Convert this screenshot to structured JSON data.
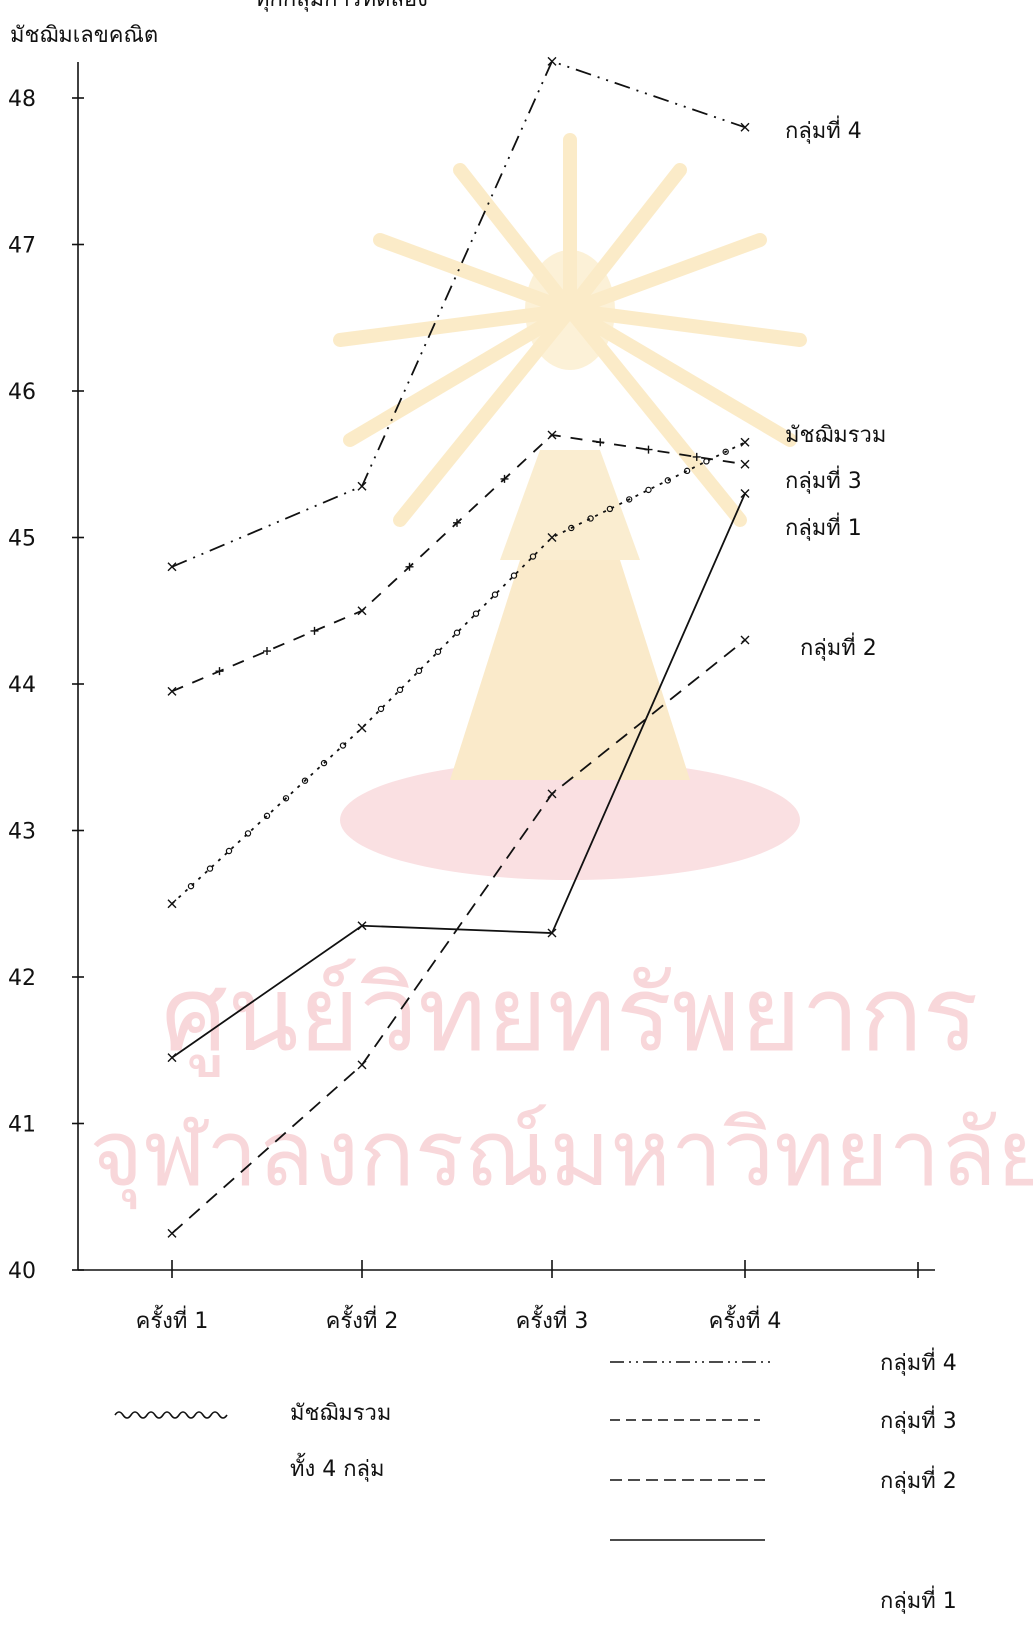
{
  "chart_data": {
    "type": "line",
    "title": "ทุกกลุ่มการทดลอง",
    "ylabel": "มัชฌิมเลขคณิต",
    "xlabel": "",
    "ylim": [
      40,
      48
    ],
    "yticks": [
      "40",
      "41",
      "42",
      "43",
      "44",
      "45",
      "46",
      "47",
      "48"
    ],
    "categories": [
      "ครั้งที่ 1",
      "ครั้งที่ 2",
      "ครั้งที่ 3",
      "ครั้งที่ 4"
    ],
    "grid": false,
    "series": [
      {
        "name": "กลุ่มที่ 4",
        "values": [
          44.8,
          45.35,
          48.25,
          47.8
        ],
        "style": "dash-dot"
      },
      {
        "name": "มัชฌิมรวม",
        "values": [
          42.5,
          43.7,
          45.0,
          45.65
        ],
        "style": "circles"
      },
      {
        "name": "กลุ่มที่ 3",
        "values": [
          43.95,
          44.5,
          45.7,
          45.5
        ],
        "style": "dash-cross"
      },
      {
        "name": "กลุ่มที่ 1",
        "values": [
          41.45,
          42.35,
          42.3,
          45.3
        ],
        "style": "solid"
      },
      {
        "name": "กลุ่มที่ 2",
        "values": [
          40.25,
          41.4,
          43.25,
          44.3
        ],
        "style": "dashed"
      }
    ],
    "end_labels": [
      "กลุ่มที่ 4",
      "มัชฌิมรวม",
      "กลุ่มที่ 3",
      "กลุ่มที่ 1",
      "กลุ่มที่ 2"
    ],
    "legend": {
      "position": "bottom",
      "mean_label_line1": "มัชฌิมรวม",
      "mean_label_line2": "ทั้ง 4 กลุ่ม",
      "items": [
        "กลุ่มที่ 4",
        "กลุ่มที่ 3",
        "กลุ่มที่ 2",
        "กลุ่มที่ 1"
      ]
    },
    "watermark": {
      "line1": "ศูนย์วิทยทรัพยากร",
      "line2": "จุฬาลงกรณ์มหาวิทยาลัย",
      "color": "#f3b7bd"
    }
  }
}
